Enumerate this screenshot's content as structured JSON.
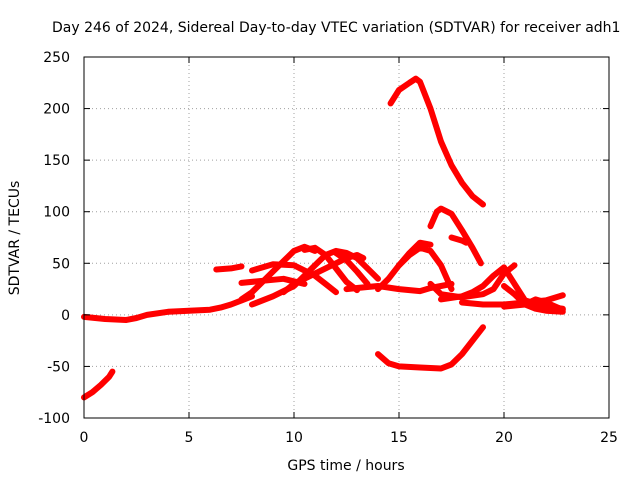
{
  "chart_data": {
    "type": "line",
    "title": "Day 246 of 2024, Sidereal Day-to-day VTEC variation (SDTVAR) for receiver adh1",
    "xlabel": "GPS time / hours",
    "ylabel": "SDTVAR / TECUs",
    "xlim": [
      0,
      25
    ],
    "ylim": [
      -100,
      250
    ],
    "xticks": [
      0,
      5,
      10,
      15,
      20,
      25
    ],
    "yticks": [
      -100,
      -50,
      0,
      50,
      100,
      150,
      200,
      250
    ],
    "grid": true,
    "color": "#ff0000",
    "series": [
      {
        "name": "s1",
        "x": [
          0,
          0.4,
          0.8,
          1.2,
          1.35
        ],
        "y": [
          -80,
          -75,
          -68,
          -60,
          -55
        ]
      },
      {
        "name": "s2",
        "x": [
          0,
          1,
          2,
          2.5,
          3,
          4,
          5,
          6,
          6.5,
          7,
          7.5,
          8
        ],
        "y": [
          -2,
          -4,
          -5,
          -3,
          0,
          3,
          4,
          5,
          7,
          10,
          14,
          18
        ]
      },
      {
        "name": "s3",
        "x": [
          6.3,
          7,
          7.5
        ],
        "y": [
          44,
          45,
          47
        ]
      },
      {
        "name": "s4",
        "x": [
          7.5,
          8.5,
          9.5,
          10.5
        ],
        "y": [
          31,
          33,
          35,
          30
        ]
      },
      {
        "name": "s5",
        "x": [
          8,
          9,
          10,
          11,
          11.5,
          12
        ],
        "y": [
          43,
          49,
          48,
          38,
          30,
          22
        ]
      },
      {
        "name": "s6",
        "x": [
          7.5,
          8,
          8.5,
          9,
          9.5,
          10,
          10.5,
          11
        ],
        "y": [
          15,
          22,
          32,
          42,
          52,
          62,
          66,
          62
        ]
      },
      {
        "name": "s7",
        "x": [
          8,
          9,
          10,
          10.5,
          11,
          11.5,
          12,
          12.5,
          13,
          13.5,
          14
        ],
        "y": [
          10,
          18,
          28,
          38,
          48,
          58,
          62,
          60,
          55,
          45,
          35
        ]
      },
      {
        "name": "s8",
        "x": [
          9.5,
          10,
          11,
          12,
          12.5,
          13,
          13.3
        ],
        "y": [
          22,
          30,
          40,
          50,
          55,
          58,
          55
        ]
      },
      {
        "name": "s9",
        "x": [
          10.5,
          11,
          11.5,
          12,
          12.5,
          13
        ],
        "y": [
          63,
          65,
          58,
          45,
          32,
          24
        ]
      },
      {
        "name": "s10",
        "x": [
          12,
          12.5,
          13,
          13.5
        ],
        "y": [
          60,
          53,
          42,
          30
        ]
      },
      {
        "name": "s11",
        "x": [
          12.5,
          13,
          14,
          15,
          16,
          16.5,
          17,
          17.5
        ],
        "y": [
          25,
          26,
          28,
          25,
          23,
          26,
          28,
          30
        ]
      },
      {
        "name": "s12",
        "x": [
          14,
          14.5,
          15,
          15.5,
          16,
          16.5,
          17,
          17.5
        ],
        "y": [
          25,
          35,
          48,
          58,
          65,
          62,
          48,
          25
        ]
      },
      {
        "name": "s13",
        "x": [
          15,
          15.5,
          16,
          16.5
        ],
        "y": [
          48,
          60,
          70,
          68
        ]
      },
      {
        "name": "s14",
        "x": [
          14.6,
          15,
          15.5,
          15.8,
          16,
          16.5,
          17,
          17.5,
          18,
          18.5,
          19
        ],
        "y": [
          205,
          218,
          225,
          229,
          226,
          200,
          168,
          145,
          128,
          115,
          107
        ]
      },
      {
        "name": "s15",
        "x": [
          16.5,
          16.8,
          17,
          17.5,
          18,
          18.5,
          18.9
        ],
        "y": [
          86,
          100,
          103,
          98,
          82,
          65,
          50
        ]
      },
      {
        "name": "s16",
        "x": [
          17.5,
          18,
          18.2
        ],
        "y": [
          75,
          72,
          70
        ]
      },
      {
        "name": "s17",
        "x": [
          14,
          14.5,
          15,
          16,
          17,
          17.5,
          18,
          18.5,
          19
        ],
        "y": [
          -38,
          -47,
          -50,
          -51,
          -52,
          -48,
          -38,
          -25,
          -12
        ]
      },
      {
        "name": "s18",
        "x": [
          16.5,
          17,
          18,
          19,
          19.5,
          20,
          20.5
        ],
        "y": [
          30,
          20,
          17,
          20,
          25,
          40,
          48
        ]
      },
      {
        "name": "s19",
        "x": [
          17,
          18,
          18.5,
          19,
          19.5,
          20,
          21,
          22,
          22.8
        ],
        "y": [
          15,
          18,
          22,
          28,
          38,
          46,
          14,
          8,
          6
        ]
      },
      {
        "name": "s20",
        "x": [
          18,
          19,
          20,
          21,
          22,
          22.8
        ],
        "y": [
          12,
          10,
          10,
          12,
          14,
          19
        ]
      },
      {
        "name": "s21",
        "x": [
          20,
          20.5,
          21,
          21.5,
          22,
          22.8
        ],
        "y": [
          28,
          20,
          10,
          15,
          12,
          5
        ]
      },
      {
        "name": "s22",
        "x": [
          20,
          21,
          21.5,
          22,
          22.8
        ],
        "y": [
          8,
          10,
          6,
          4,
          3
        ]
      }
    ]
  }
}
